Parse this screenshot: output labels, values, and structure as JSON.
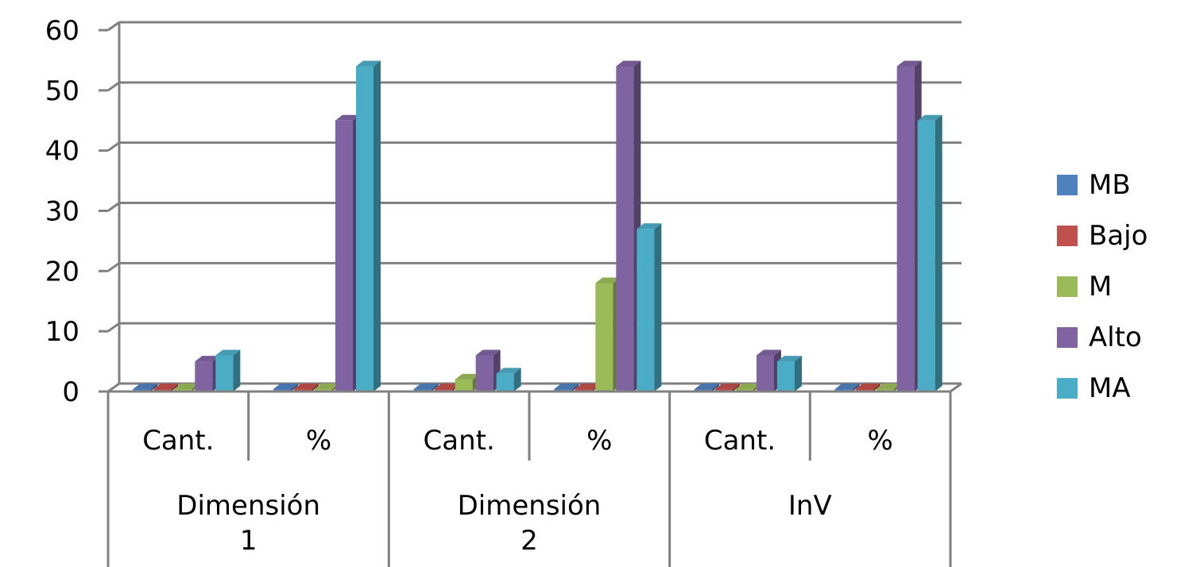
{
  "chart_data": {
    "type": "bar",
    "style": "3d-clustered-column",
    "ylim": [
      0,
      60
    ],
    "yticks": [
      "0",
      "10",
      "20",
      "30",
      "40",
      "50",
      "60"
    ],
    "grid": true,
    "legend": "right",
    "categories": [
      "Cant.",
      "%",
      "Cant.",
      "%",
      "Cant.",
      "%"
    ],
    "groups": [
      {
        "label_lines": [
          "Dimensión",
          "1"
        ],
        "span": 2
      },
      {
        "label_lines": [
          "Dimensión",
          "2"
        ],
        "span": 2
      },
      {
        "label_lines": [
          "InV"
        ],
        "span": 2
      }
    ],
    "series": [
      {
        "name": "MB",
        "color": "#4f81bd",
        "values": [
          0,
          0,
          0,
          0,
          0,
          0
        ]
      },
      {
        "name": "Bajo",
        "color": "#c0504d",
        "values": [
          0,
          0,
          0,
          0,
          0,
          0
        ]
      },
      {
        "name": "M",
        "color": "#9bbb59",
        "values": [
          0,
          0,
          2,
          18,
          0,
          0
        ]
      },
      {
        "name": "Alto",
        "color": "#8064a2",
        "values": [
          5,
          45,
          6,
          54,
          6,
          54
        ]
      },
      {
        "name": "MA",
        "color": "#4bacc6",
        "values": [
          6,
          54,
          3,
          27,
          5,
          45
        ]
      }
    ]
  }
}
